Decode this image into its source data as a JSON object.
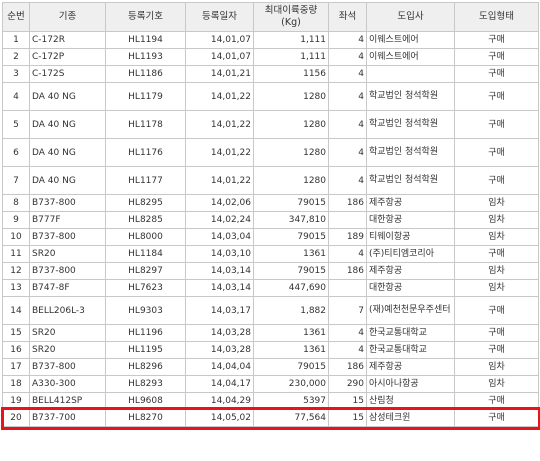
{
  "headers": [
    "순번",
    "기종",
    "등록기호",
    "등록일자",
    "최대이륙중량\n(Kg)",
    "좌석",
    "도입사",
    "도입형태"
  ],
  "rows": [
    [
      "1",
      "C-172R",
      "HL1194",
      "14,01,07",
      "1,111",
      "4",
      "이웨스트에어",
      "구매"
    ],
    [
      "2",
      "C-172P",
      "HL1193",
      "14,01,07",
      "1,111",
      "4",
      "이웨스트에어",
      "구매"
    ],
    [
      "3",
      "C-172S",
      "HL1186",
      "14,01,21",
      "1156",
      "4",
      "",
      "구매"
    ],
    [
      "4",
      "DA 40 NG",
      "HL1179",
      "14,01,22",
      "1280",
      "4",
      "학교법인 청석학원",
      "구매"
    ],
    [
      "5",
      "DA 40 NG",
      "HL1178",
      "14,01,22",
      "1280",
      "4",
      "학교법인 청석학원",
      "구매"
    ],
    [
      "6",
      "DA 40 NG",
      "HL1176",
      "14,01,22",
      "1280",
      "4",
      "학교법인 청석학원",
      "구매"
    ],
    [
      "7",
      "DA 40 NG",
      "HL1177",
      "14,01,22",
      "1280",
      "4",
      "학교법인 청석학원",
      "구매"
    ],
    [
      "8",
      "B737-800",
      "HL8295",
      "14,02,06",
      "79015",
      "186",
      "제주항공",
      "임차"
    ],
    [
      "9",
      "B777F",
      "HL8285",
      "14,02,24",
      "347,810",
      "",
      "대한항공",
      "임차"
    ],
    [
      "10",
      "B737-800",
      "HL8000",
      "14,03,04",
      "79015",
      "189",
      "티웨이항공",
      "임차"
    ],
    [
      "11",
      "SR20",
      "HL1184",
      "14,03,10",
      "1361",
      "4",
      "(주)티티엠코리아",
      "구매"
    ],
    [
      "12",
      "B737-800",
      "HL8297",
      "14,03,14",
      "79015",
      "186",
      "제주항공",
      "임차"
    ],
    [
      "13",
      "B747-8F",
      "HL7623",
      "14,03,14",
      "447,690",
      "",
      "대한항공",
      "임차"
    ],
    [
      "14",
      "BELL206L-3",
      "HL9303",
      "14,03,17",
      "1,882",
      "7",
      "(재)예천천문우주센터",
      "구매"
    ],
    [
      "15",
      "SR20",
      "HL1196",
      "14,03,28",
      "1361",
      "4",
      "한국교통대학교",
      "구매"
    ],
    [
      "16",
      "SR20",
      "HL1195",
      "14,03,28",
      "1361",
      "4",
      "한국교통대학교",
      "구매"
    ],
    [
      "17",
      "B737-800",
      "HL8296",
      "14,04,04",
      "79015",
      "186",
      "제주항공",
      "임차"
    ],
    [
      "18",
      "A330-300",
      "HL8293",
      "14,04,17",
      "230,000",
      "290",
      "아시아나항공",
      "임차"
    ],
    [
      "19",
      "BELL412SP",
      "HL9608",
      "14,04,29",
      "5397",
      "15",
      "산림청",
      "구매"
    ],
    [
      "20",
      "B737-700",
      "HL8270",
      "14,05,02",
      "77,564",
      "15",
      "삼성테크윈",
      "구매"
    ]
  ],
  "tall_rows": [
    3,
    4,
    5,
    6,
    13
  ],
  "highlighted_row": 19,
  "colors": {
    "highlight": "#e8131b",
    "header_bg": "#efefef",
    "border": "#c8c8c8"
  }
}
